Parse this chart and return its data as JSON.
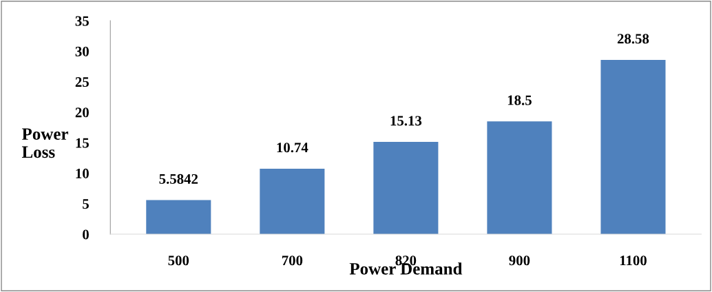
{
  "chart_data": {
    "type": "bar",
    "xlabel": "Power Demand",
    "ylabel": "Power\nLoss",
    "categories": [
      "500",
      "700",
      "820",
      "900",
      "1100"
    ],
    "values": [
      5.5842,
      10.74,
      15.13,
      18.5,
      28.58
    ],
    "color": "#4f81bd",
    "ylim": [
      0,
      35
    ],
    "yticks": [
      0,
      5,
      10,
      15,
      20,
      25,
      30,
      35
    ],
    "data_labels": true,
    "grid": false,
    "legend": false
  }
}
